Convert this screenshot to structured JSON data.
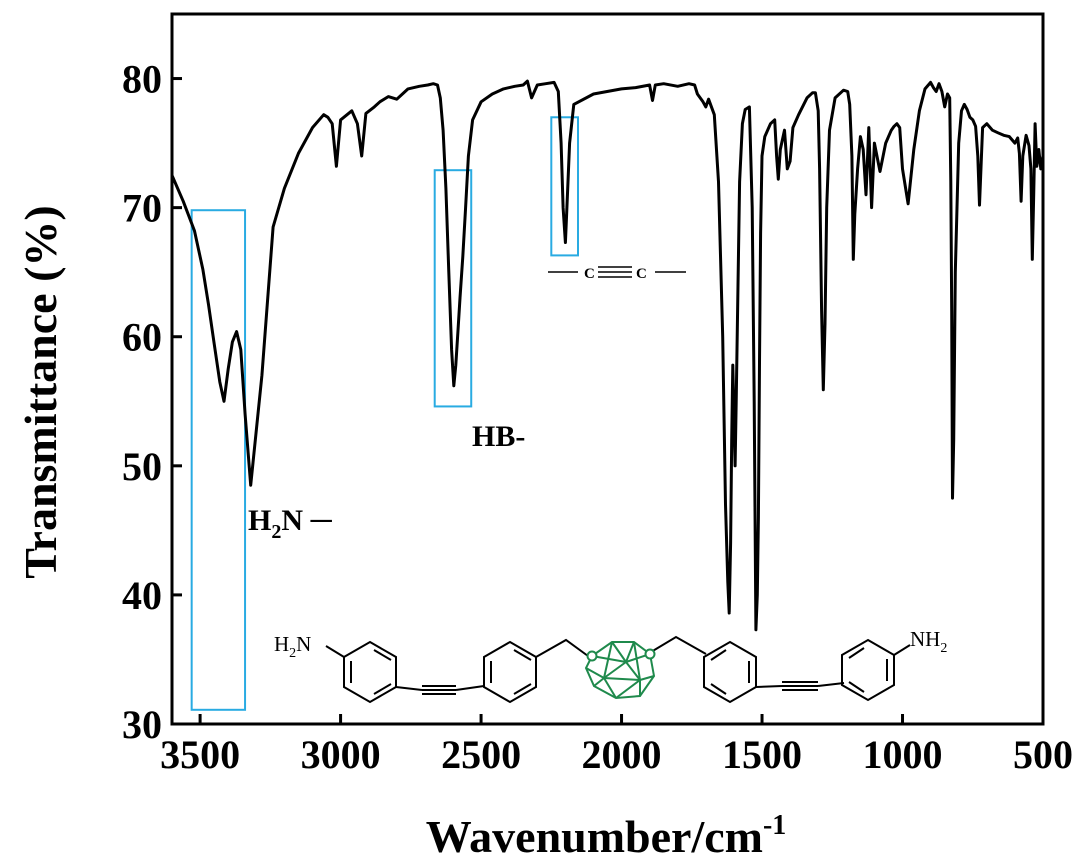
{
  "chart_data": {
    "type": "line",
    "xlabel": "Wavenumber/cm",
    "xlabel_sup": "-1",
    "ylabel": "Transmittance (%)",
    "xlim": [
      3600,
      500
    ],
    "ylim": [
      30,
      85
    ],
    "x_reversed": true,
    "grid": false,
    "x_ticks": [
      3500,
      3000,
      2500,
      2000,
      1500,
      1000,
      500
    ],
    "y_ticks": [
      30,
      40,
      50,
      60,
      70,
      80
    ],
    "line_color": "#000000",
    "highlight_color": "#29abe2",
    "molecule_color": "#1f8a4c",
    "series": [
      {
        "x": [
          3600,
          3560,
          3520,
          3490,
          3470,
          3450,
          3430,
          3415,
          3400,
          3385,
          3370,
          3355,
          3340,
          3320,
          3280,
          3240,
          3200,
          3150,
          3100,
          3060,
          3045,
          3030,
          3015,
          3000,
          2960,
          2940,
          2925,
          2910,
          2880,
          2860,
          2830,
          2800,
          2760,
          2720,
          2690,
          2670,
          2655,
          2645,
          2635,
          2625,
          2615,
          2605,
          2597,
          2590,
          2582,
          2575,
          2565,
          2555,
          2545,
          2530,
          2500,
          2460,
          2420,
          2380,
          2350,
          2335,
          2320,
          2300,
          2270,
          2240,
          2225,
          2215,
          2208,
          2200,
          2195,
          2185,
          2170,
          2100,
          2000,
          1950,
          1900,
          1890,
          1880,
          1850,
          1800,
          1760,
          1740,
          1730,
          1710,
          1700,
          1690,
          1670,
          1655,
          1640,
          1630,
          1622,
          1617,
          1612,
          1608,
          1604,
          1600,
          1596,
          1592,
          1588,
          1580,
          1570,
          1560,
          1545,
          1535,
          1528,
          1522,
          1517,
          1513,
          1509,
          1505,
          1500,
          1490,
          1470,
          1455,
          1448,
          1442,
          1435,
          1420,
          1410,
          1400,
          1390,
          1370,
          1340,
          1320,
          1310,
          1300,
          1295,
          1288,
          1282,
          1276,
          1270,
          1260,
          1240,
          1210,
          1195,
          1188,
          1180,
          1175,
          1170,
          1160,
          1150,
          1140,
          1130,
          1120,
          1110,
          1100,
          1080,
          1060,
          1040,
          1030,
          1020,
          1010,
          1000,
          980,
          960,
          940,
          920,
          900,
          890,
          880,
          870,
          860,
          850,
          840,
          832,
          828,
          825,
          822,
          818,
          812,
          800,
          790,
          780,
          770,
          760,
          750,
          740,
          732,
          726,
          720,
          715,
          700,
          680,
          660,
          640,
          620,
          600,
          590,
          584,
          578,
          572,
          560,
          550,
          543,
          538,
          533,
          528,
          522,
          515,
          508,
          500
        ],
        "y": [
          72.5,
          70.5,
          68.2,
          65.2,
          62.5,
          59.5,
          56.5,
          55.0,
          57.5,
          59.6,
          60.4,
          59.0,
          54.0,
          48.5,
          57.0,
          68.5,
          71.5,
          74.2,
          76.2,
          77.2,
          77.0,
          76.5,
          73.2,
          76.8,
          77.5,
          76.5,
          74.0,
          77.3,
          77.8,
          78.2,
          78.6,
          78.4,
          79.2,
          79.4,
          79.5,
          79.6,
          79.5,
          78.5,
          76.0,
          71.5,
          65.0,
          59.0,
          56.2,
          57.8,
          60.5,
          63.0,
          66.2,
          70.0,
          74.0,
          76.8,
          78.2,
          78.8,
          79.2,
          79.4,
          79.5,
          79.8,
          78.5,
          79.5,
          79.6,
          79.7,
          79.0,
          75.0,
          70.0,
          67.3,
          69.8,
          75.0,
          78.0,
          78.8,
          79.2,
          79.3,
          79.5,
          78.3,
          79.5,
          79.6,
          79.4,
          79.6,
          79.5,
          78.8,
          78.2,
          77.8,
          78.4,
          77.2,
          72.0,
          60.0,
          47.0,
          41.0,
          38.6,
          44.0,
          52.0,
          57.8,
          54.0,
          50.0,
          55.0,
          60.5,
          72.0,
          76.5,
          77.6,
          77.8,
          70.0,
          55.0,
          37.3,
          40.0,
          46.0,
          58.0,
          68.0,
          74.0,
          75.5,
          76.5,
          76.8,
          74.0,
          72.2,
          74.5,
          76.0,
          73.0,
          73.6,
          76.2,
          77.2,
          78.5,
          78.9,
          78.9,
          77.5,
          73.0,
          62.0,
          55.9,
          61.0,
          70.0,
          76.0,
          78.5,
          79.1,
          79.0,
          78.0,
          74.0,
          66.0,
          69.5,
          73.0,
          75.5,
          74.5,
          71.0,
          76.2,
          70.0,
          75.0,
          72.8,
          75.0,
          76.0,
          76.3,
          76.5,
          76.2,
          73.0,
          70.3,
          74.5,
          77.5,
          79.2,
          79.7,
          79.3,
          79.0,
          79.6,
          79.0,
          77.8,
          78.8,
          78.5,
          72.0,
          62.0,
          47.5,
          52.0,
          65.0,
          75.0,
          77.5,
          78.0,
          77.6,
          77.0,
          76.8,
          76.3,
          74.0,
          70.2,
          73.5,
          76.2,
          76.5,
          76.0,
          75.8,
          75.6,
          75.5,
          75.0,
          75.4,
          74.2,
          70.5,
          74.0,
          75.6,
          74.8,
          73.0,
          66.0,
          71.0,
          76.5,
          73.2,
          74.5,
          73.0,
          74.0
        ]
      }
    ],
    "annotations": [
      {
        "id": "nh2",
        "text": "H",
        "sub": "2",
        "tail": "N ─",
        "x": 3230,
        "y": 46.3
      },
      {
        "id": "hb",
        "text": "HB-",
        "x": 2560,
        "y": 52.2
      },
      {
        "id": "alkyne",
        "text": "C",
        "x": 2125,
        "y": 65.0
      }
    ],
    "highlight_boxes": [
      {
        "x0": 3530,
        "x1": 3340,
        "y0": 31.1,
        "y1": 69.8
      },
      {
        "x0": 2665,
        "x1": 2535,
        "y0": 54.6,
        "y1": 72.9
      },
      {
        "x0": 2250,
        "x1": 2155,
        "y0": 66.3,
        "y1": 77.0
      }
    ],
    "molecule_labels": {
      "left_amine": "H",
      "left_amine_sub": "2",
      "left_amine_tail": "N",
      "right_amine": "NH",
      "right_amine_sub": "2"
    }
  }
}
